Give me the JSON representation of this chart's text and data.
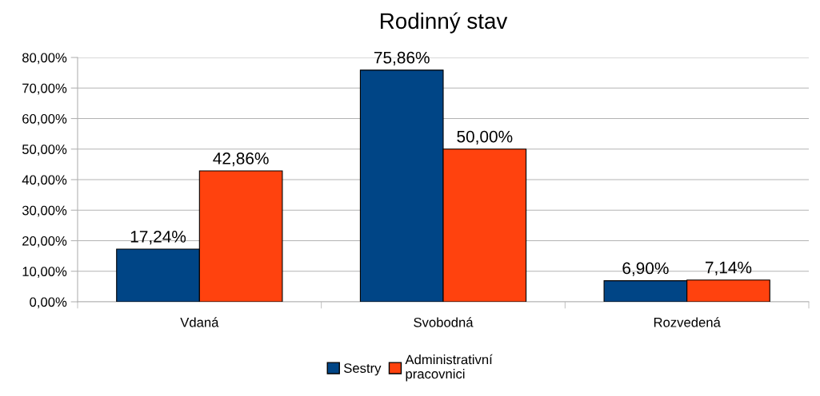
{
  "chart_data": {
    "type": "bar",
    "title": "Rodinný stav",
    "categories": [
      "Vdaná",
      "Svobodná",
      "Rozvedená"
    ],
    "series": [
      {
        "name": "Sestry",
        "color": "#004586",
        "values": [
          17.24,
          75.86,
          6.9
        ],
        "value_labels": [
          "17,24%",
          "75,86%",
          "6,90%"
        ]
      },
      {
        "name": "Administrativní pracovnici",
        "color": "#ff420e",
        "values": [
          42.86,
          50.0,
          7.14
        ],
        "value_labels": [
          "42,86%",
          "50,00%",
          "7,14%"
        ]
      }
    ],
    "ylim": [
      0,
      80
    ],
    "yticks": [
      {
        "value": 0,
        "label": "0,00%"
      },
      {
        "value": 10,
        "label": "10,00%"
      },
      {
        "value": 20,
        "label": "20,00%"
      },
      {
        "value": 30,
        "label": "30,00%"
      },
      {
        "value": 40,
        "label": "40,00%"
      },
      {
        "value": 50,
        "label": "50,00%"
      },
      {
        "value": 60,
        "label": "60,00%"
      },
      {
        "value": 70,
        "label": "70,00%"
      },
      {
        "value": 80,
        "label": "80,00%"
      }
    ],
    "grid": "y",
    "legend": "bottom"
  }
}
